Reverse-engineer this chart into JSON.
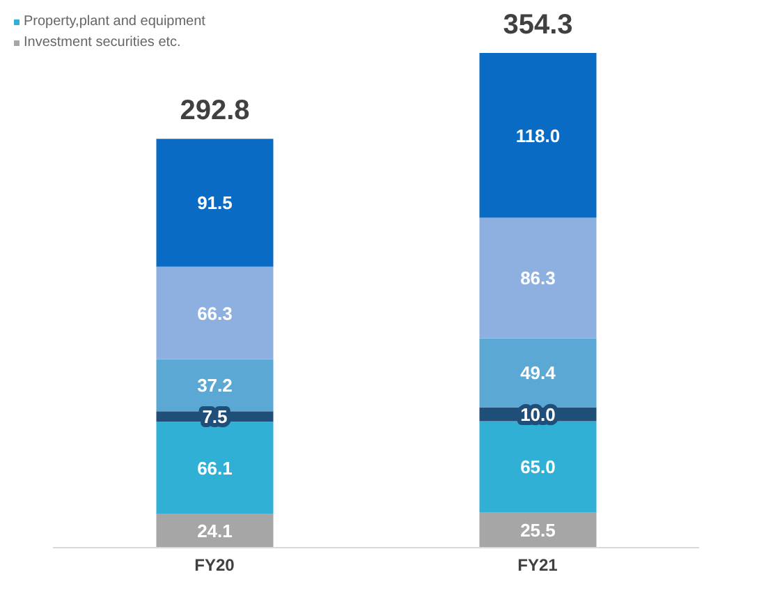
{
  "chart_data": {
    "type": "bar",
    "stacked": true,
    "categories": [
      "FY20",
      "FY21"
    ],
    "series": [
      {
        "name": "Investment securities etc.",
        "color": "#a6a6a6",
        "values": [
          24.1,
          25.5
        ],
        "value_labels": [
          "24.1",
          "25.5"
        ]
      },
      {
        "name": "Property,plant and equipment",
        "color": "#31b0d5",
        "values": [
          66.1,
          65.0
        ],
        "value_labels": [
          "66.1",
          "65.0"
        ]
      },
      {
        "color": "#1f4e79",
        "values": [
          7.5,
          10.0
        ],
        "value_labels": [
          "7.5",
          "10.0"
        ]
      },
      {
        "color": "#5ba8d4",
        "values": [
          37.2,
          49.4
        ],
        "value_labels": [
          "37.2",
          "49.4"
        ]
      },
      {
        "color": "#8db0e0",
        "values": [
          66.3,
          86.3
        ],
        "value_labels": [
          "66.3",
          "86.3"
        ]
      },
      {
        "color": "#0a6bc4",
        "values": [
          91.5,
          118.0
        ],
        "value_labels": [
          "91.5",
          "118.0"
        ]
      }
    ],
    "totals": [
      "292.8",
      "354.3"
    ],
    "legend": "top left"
  }
}
